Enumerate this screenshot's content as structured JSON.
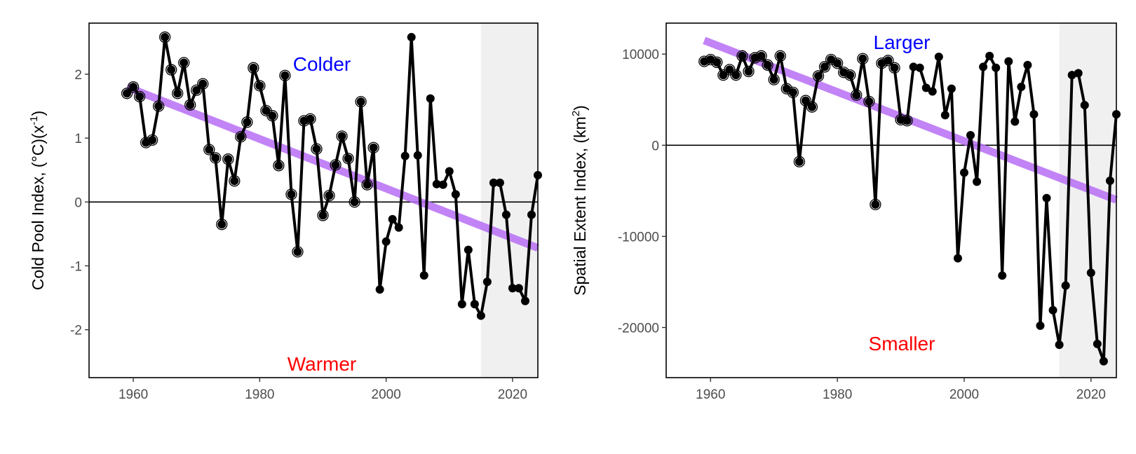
{
  "chart_data": [
    {
      "type": "line",
      "ylabel_main": "Cold Pool Index, (°C)(x",
      "ylabel_sup": "-1",
      "ylabel_end": ")",
      "xlim": [
        1953,
        2024
      ],
      "ylim": [
        -2.75,
        2.8
      ],
      "xticks": [
        1960,
        1980,
        2000,
        2020
      ],
      "yticks": [
        -2,
        -1,
        0,
        1,
        2
      ],
      "ytick_labels": [
        "-2",
        "-1",
        "0",
        "1",
        "2"
      ],
      "shade_from": 2015,
      "open_marker_until": 1998,
      "trend": {
        "x": [
          1959,
          2024
        ],
        "y": [
          1.8,
          -0.72
        ]
      },
      "annotations": {
        "top": "Colder",
        "bottom": "Warmer"
      },
      "annotation_colors": {
        "top": "#0000ff",
        "bottom": "#ff0000"
      },
      "trend_color": "#b86ef5",
      "x": [
        1959,
        1960,
        1961,
        1962,
        1963,
        1964,
        1965,
        1966,
        1967,
        1968,
        1969,
        1970,
        1971,
        1972,
        1973,
        1974,
        1975,
        1976,
        1977,
        1978,
        1979,
        1980,
        1981,
        1982,
        1983,
        1984,
        1985,
        1986,
        1987,
        1988,
        1989,
        1990,
        1991,
        1992,
        1993,
        1994,
        1995,
        1996,
        1997,
        1998,
        1999,
        2000,
        2001,
        2002,
        2003,
        2004,
        2005,
        2006,
        2007,
        2008,
        2009,
        2010,
        2011,
        2012,
        2013,
        2014,
        2015,
        2016,
        2017,
        2018,
        2019,
        2020,
        2021,
        2022,
        2023,
        2024
      ],
      "values": [
        1.7,
        1.8,
        1.65,
        0.93,
        0.97,
        1.5,
        2.58,
        2.07,
        1.7,
        2.18,
        1.52,
        1.75,
        1.85,
        0.82,
        0.69,
        -0.35,
        0.67,
        0.33,
        1.02,
        1.25,
        2.1,
        1.82,
        1.43,
        1.35,
        0.57,
        1.98,
        0.12,
        -0.78,
        1.27,
        1.3,
        0.83,
        -0.21,
        0.1,
        0.58,
        1.03,
        0.68,
        0.0,
        1.57,
        0.27,
        0.85,
        -1.37,
        -0.62,
        -0.27,
        -0.4,
        0.72,
        2.58,
        0.73,
        -1.15,
        1.62,
        0.28,
        0.27,
        0.48,
        0.12,
        -1.6,
        -0.75,
        -1.6,
        -1.78,
        -1.25,
        0.3,
        0.3,
        -0.2,
        -1.35,
        -1.35,
        -1.55,
        -0.2,
        0.42
      ]
    },
    {
      "type": "line",
      "ylabel_main": "Spatial Extent Index, (km",
      "ylabel_sup": "2",
      "ylabel_end": ")",
      "xlim": [
        1953,
        2024
      ],
      "ylim": [
        -25500,
        13400
      ],
      "xticks": [
        1960,
        1980,
        2000,
        2020
      ],
      "yticks": [
        -20000,
        -10000,
        0,
        10000
      ],
      "ytick_labels": [
        "-20000",
        "-10000",
        "0",
        "10000"
      ],
      "shade_from": 2015,
      "open_marker_until": 1991,
      "trend": {
        "x": [
          1959,
          2024
        ],
        "y": [
          11500,
          -6000
        ]
      },
      "annotations": {
        "top": "Larger",
        "bottom": "Smaller"
      },
      "annotation_colors": {
        "top": "#0000ff",
        "bottom": "#ff0000"
      },
      "trend_color": "#b86ef5",
      "x": [
        1959,
        1960,
        1961,
        1962,
        1963,
        1964,
        1965,
        1966,
        1967,
        1968,
        1969,
        1970,
        1971,
        1972,
        1973,
        1974,
        1975,
        1976,
        1977,
        1978,
        1979,
        1980,
        1981,
        1982,
        1983,
        1984,
        1985,
        1986,
        1987,
        1988,
        1989,
        1990,
        1991,
        1992,
        1993,
        1994,
        1995,
        1996,
        1997,
        1998,
        1999,
        2000,
        2001,
        2002,
        2003,
        2004,
        2005,
        2006,
        2007,
        2008,
        2009,
        2010,
        2011,
        2012,
        2013,
        2014,
        2015,
        2016,
        2017,
        2018,
        2019,
        2020,
        2021,
        2022,
        2023,
        2024
      ],
      "values": [
        9200,
        9400,
        9100,
        7700,
        8300,
        7700,
        9800,
        8100,
        9600,
        9800,
        8800,
        7200,
        9800,
        6200,
        5800,
        -1800,
        4900,
        4200,
        7600,
        8600,
        9400,
        9000,
        8000,
        7700,
        5500,
        9500,
        4800,
        -6500,
        9000,
        9300,
        8500,
        2800,
        2700,
        8600,
        8500,
        6300,
        5900,
        9700,
        3300,
        6200,
        -12400,
        -3000,
        1100,
        -4000,
        8600,
        9800,
        8500,
        -14300,
        9200,
        2600,
        6400,
        8800,
        3400,
        -19800,
        -5800,
        -18100,
        -21900,
        -15400,
        7700,
        7900,
        4400,
        -14000,
        -21800,
        -23700,
        -3900,
        3400
      ]
    }
  ]
}
